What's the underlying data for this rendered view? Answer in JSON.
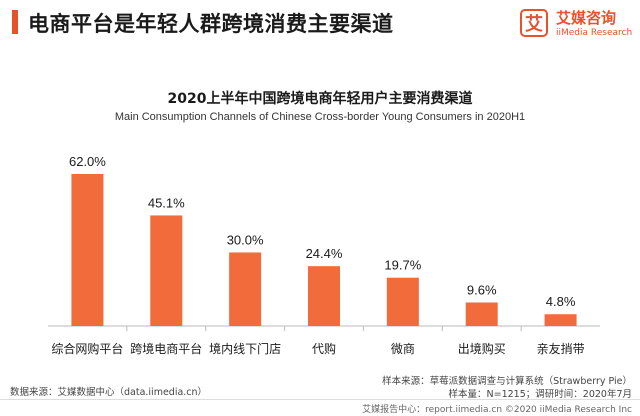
{
  "header": {
    "title": "电商平台是年轻人群跨境消费主要渠道",
    "logo_mark": "艾",
    "logo_cn": "艾媒咨询",
    "logo_en": "iiMedia Research"
  },
  "chart_data": {
    "type": "bar",
    "title": "2020上半年中国跨境电商年轻用户主要消费渠道",
    "subtitle": "Main Consumption Channels of Chinese Cross-border Young Consumers in 2020H1",
    "categories": [
      "综合网购平台",
      "跨境电商平台",
      "境内线下门店",
      "代购",
      "微商",
      "出境购买",
      "亲友捎带"
    ],
    "values": [
      62.0,
      45.1,
      30.0,
      24.4,
      19.7,
      9.6,
      4.8
    ],
    "value_labels": [
      "62.0%",
      "45.1%",
      "30.0%",
      "24.4%",
      "19.7%",
      "9.6%",
      "4.8%"
    ],
    "unit": "%",
    "ylim": [
      0,
      62
    ],
    "grid": false,
    "bar_color": "#f26b3a",
    "axis_color": "#bbbbbb"
  },
  "sources": {
    "left": "数据来源：艾媒数据中心（data.iimedia.cn）",
    "right_line1": "样本来源：草莓派数据调查与计算系统（Strawberry Pie）",
    "right_line2": "样本量：N=1215；调研时间：2020年7月"
  },
  "footer": {
    "text": "艾媒报告中心：report.iimedia.cn  ©2020  iiMedia Research  Inc"
  }
}
